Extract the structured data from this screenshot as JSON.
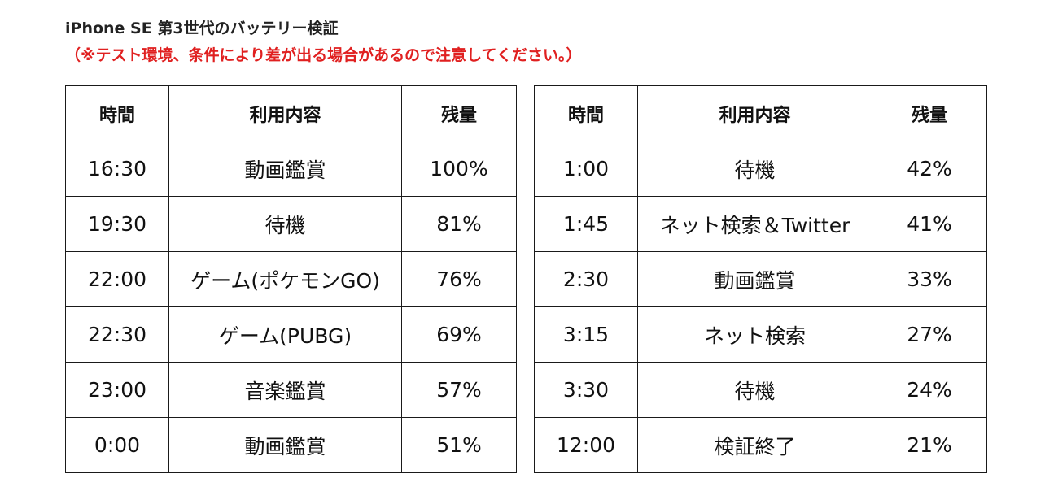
{
  "title": "iPhone SE 第3世代のバッテリー検証",
  "note": "（※テスト環境、条件により差が出る場合があるので注意してください。）",
  "table_left": {
    "headers": {
      "time": "時間",
      "usage": "利用内容",
      "remaining": "残量"
    },
    "rows": [
      {
        "time": "16:30",
        "usage": "動画鑑賞",
        "remaining": "100%"
      },
      {
        "time": "19:30",
        "usage": "待機",
        "remaining": "81%"
      },
      {
        "time": "22:00",
        "usage": "ゲーム(ポケモンGO)",
        "remaining": "76%"
      },
      {
        "time": "22:30",
        "usage": "ゲーム(PUBG)",
        "remaining": "69%"
      },
      {
        "time": "23:00",
        "usage": "音楽鑑賞",
        "remaining": "57%"
      },
      {
        "time": "0:00",
        "usage": "動画鑑賞",
        "remaining": "51%"
      }
    ]
  },
  "table_right": {
    "headers": {
      "time": "時間",
      "usage": "利用内容",
      "remaining": "残量"
    },
    "rows": [
      {
        "time": "1:00",
        "usage": "待機",
        "remaining": "42%"
      },
      {
        "time": "1:45",
        "usage": "ネット検索＆Twitter",
        "remaining": "41%"
      },
      {
        "time": "2:30",
        "usage": "動画鑑賞",
        "remaining": "33%"
      },
      {
        "time": "3:15",
        "usage": "ネット検索",
        "remaining": "27%"
      },
      {
        "time": "3:30",
        "usage": "待機",
        "remaining": "24%"
      },
      {
        "time": "12:00",
        "usage": "検証終了",
        "remaining": "21%"
      }
    ]
  },
  "colors": {
    "note": "#e02020",
    "border": "#1a1a1a",
    "text": "#111111"
  }
}
